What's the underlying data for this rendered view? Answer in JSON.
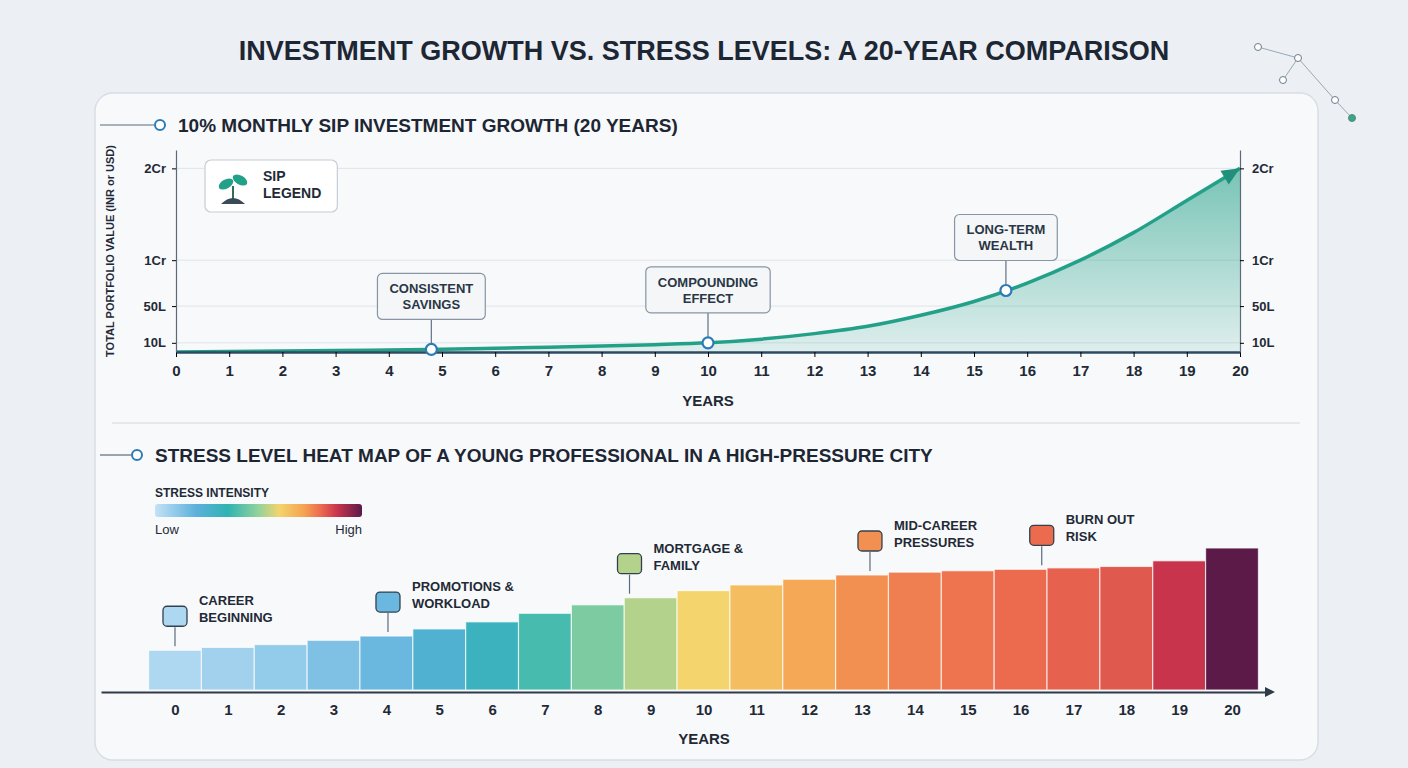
{
  "title": "INVESTMENT GROWTH VS. STRESS LEVELS: A 20-YEAR COMPARISON",
  "chart_data": [
    {
      "type": "area",
      "title": "10% MONTHLY SIP INVESTMENT GROWTH (20 YEARS)",
      "x_label": "YEARS",
      "y_label": "TOTAL PORTFOLIO VALUE (INR or USD)",
      "x": [
        0,
        1,
        2,
        3,
        4,
        5,
        6,
        7,
        8,
        9,
        10,
        11,
        12,
        13,
        14,
        15,
        16,
        17,
        18,
        19,
        20
      ],
      "series": [
        {
          "name": "SIP LEGEND",
          "color": "#23a088",
          "values": [
            0,
            0.5,
            1,
            1.6,
            2.2,
            3,
            4,
            5.2,
            6.5,
            8,
            10,
            14,
            20,
            28,
            40,
            55,
            75,
            100,
            130,
            165,
            200
          ]
        }
      ],
      "xlim": [
        0,
        20
      ],
      "xticks": [
        0,
        1,
        2,
        3,
        4,
        5,
        6,
        7,
        8,
        9,
        10,
        11,
        12,
        13,
        14,
        15,
        16,
        17,
        18,
        19,
        20
      ],
      "ylim": [
        0,
        220
      ],
      "yticks": [
        {
          "value": 10,
          "label": "10L"
        },
        {
          "value": 50,
          "label": "50L"
        },
        {
          "value": 100,
          "label": "1Cr"
        },
        {
          "value": 200,
          "label": "2Cr"
        }
      ],
      "y2lim": [
        0,
        220
      ],
      "y2ticks": [
        {
          "value": 10,
          "label": "10L"
        },
        {
          "value": 50,
          "label": "50L"
        },
        {
          "value": 100,
          "label": "1Cr"
        },
        {
          "value": 200,
          "label": "2Cr"
        }
      ],
      "grid": true,
      "legend": "upper left",
      "annotations": [
        {
          "text": "CONSISTENT SAVINGS",
          "x": 4.8,
          "y": 2.8
        },
        {
          "text": "COMPOUNDING EFFECT",
          "x": 10,
          "y": 10
        },
        {
          "text": "LONG-TERM WEALTH",
          "x": 15.6,
          "y": 67
        }
      ]
    },
    {
      "type": "heatmap",
      "title": "STRESS LEVEL HEAT MAP OF A YOUNG PROFESSIONAL IN A HIGH-PRESSURE CITY",
      "x_label": "YEARS",
      "x": [
        0,
        1,
        2,
        3,
        4,
        5,
        6,
        7,
        8,
        9,
        10,
        11,
        12,
        13,
        14,
        15,
        16,
        17,
        18,
        19,
        20
      ],
      "values": [
        28,
        30,
        32,
        35,
        38,
        43,
        48,
        54,
        60,
        65,
        70,
        74,
        78,
        81,
        83,
        84,
        85,
        86,
        87,
        91,
        100
      ],
      "xlim": [
        -1.4,
        20.7
      ],
      "xticks": [
        0,
        1,
        2,
        3,
        4,
        5,
        6,
        7,
        8,
        9,
        10,
        11,
        12,
        13,
        14,
        15,
        16,
        17,
        18,
        19,
        20
      ],
      "ylim": [
        0,
        100
      ],
      "tick_labels": "x",
      "color_label": "STRESS INTENSITY",
      "color_range": [
        25,
        100
      ],
      "color_ticks": [
        {
          "value": 25,
          "label": "Low"
        },
        {
          "value": 100,
          "label": "High"
        }
      ],
      "annotations": [
        {
          "text": "CAREER BEGINNING",
          "x": 0
        },
        {
          "text": "PROMOTIONS & WORKLOAD",
          "x": 4.03
        },
        {
          "text": "MORTGAGE & FAMILY",
          "x": 8.6
        },
        {
          "text": "MID-CAREER PRESSURES",
          "x": 13.15
        },
        {
          "text": "BURN OUT RISK",
          "x": 16.4
        }
      ]
    }
  ]
}
